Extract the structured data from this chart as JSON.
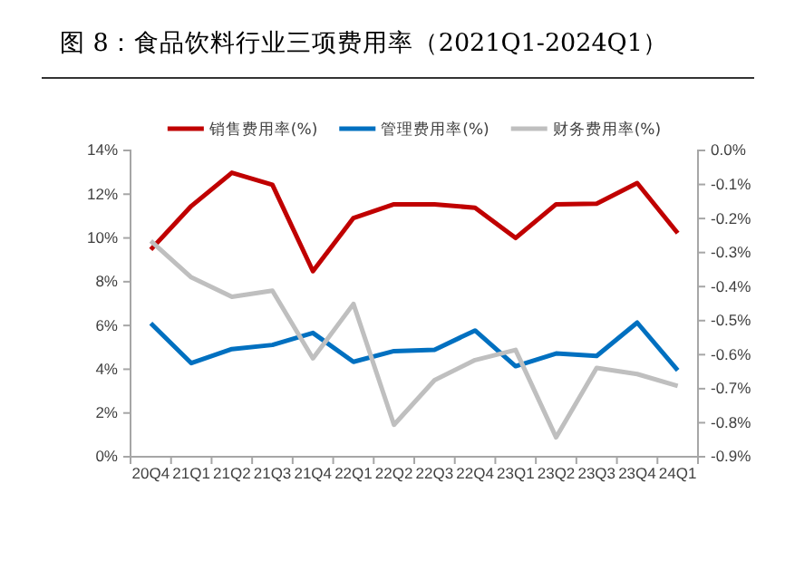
{
  "chart_data": {
    "type": "line",
    "title": "图 8：食品饮料行业三项费用率（2021Q1-2024Q1）",
    "categories": [
      "20Q4",
      "21Q1",
      "21Q2",
      "21Q3",
      "21Q4",
      "22Q1",
      "22Q2",
      "22Q3",
      "22Q4",
      "23Q1",
      "23Q2",
      "23Q3",
      "23Q4",
      "24Q1"
    ],
    "series": [
      {
        "name": "销售费用率(%)",
        "color": "#c00000",
        "values": [
          9.47,
          11.46,
          12.98,
          12.43,
          8.48,
          10.91,
          11.54,
          11.54,
          11.38,
          10.0,
          11.54,
          11.57,
          12.51,
          10.22
        ]
      },
      {
        "name": "管理费用率(%)",
        "color": "#0070c0",
        "values": [
          6.1,
          4.28,
          4.92,
          5.11,
          5.66,
          4.34,
          4.83,
          4.89,
          5.77,
          4.14,
          4.72,
          4.61,
          6.13,
          3.95
        ]
      },
      {
        "name": "财务费用率(%)",
        "color": "#bfbfbf",
        "axis": "y2",
        "values": [
          -0.266,
          -0.373,
          -0.43,
          -0.412,
          -0.611,
          -0.451,
          -0.806,
          -0.675,
          -0.616,
          -0.586,
          -0.843,
          -0.639,
          -0.657,
          -0.692
        ]
      }
    ],
    "ylim": [
      0,
      14
    ],
    "yticks": [
      {
        "value": 0,
        "label": "0%"
      },
      {
        "value": 2,
        "label": "2%"
      },
      {
        "value": 4,
        "label": "4%"
      },
      {
        "value": 6,
        "label": "6%"
      },
      {
        "value": 8,
        "label": "8%"
      },
      {
        "value": 10,
        "label": "10%"
      },
      {
        "value": 12,
        "label": "12%"
      },
      {
        "value": 14,
        "label": "14%"
      }
    ],
    "y2lim": [
      -0.9,
      0
    ],
    "y2ticks": [
      {
        "value": 0,
        "label": "0.0%"
      },
      {
        "value": -0.1,
        "label": "-0.1%"
      },
      {
        "value": -0.2,
        "label": "-0.2%"
      },
      {
        "value": -0.3,
        "label": "-0.3%"
      },
      {
        "value": -0.4,
        "label": "-0.4%"
      },
      {
        "value": -0.5,
        "label": "-0.5%"
      },
      {
        "value": -0.6,
        "label": "-0.6%"
      },
      {
        "value": -0.7,
        "label": "-0.7%"
      },
      {
        "value": -0.8,
        "label": "-0.8%"
      },
      {
        "value": -0.9,
        "label": "-0.9%"
      }
    ],
    "grid": false,
    "legend": "top",
    "marker": "none",
    "line_style": "solid"
  }
}
